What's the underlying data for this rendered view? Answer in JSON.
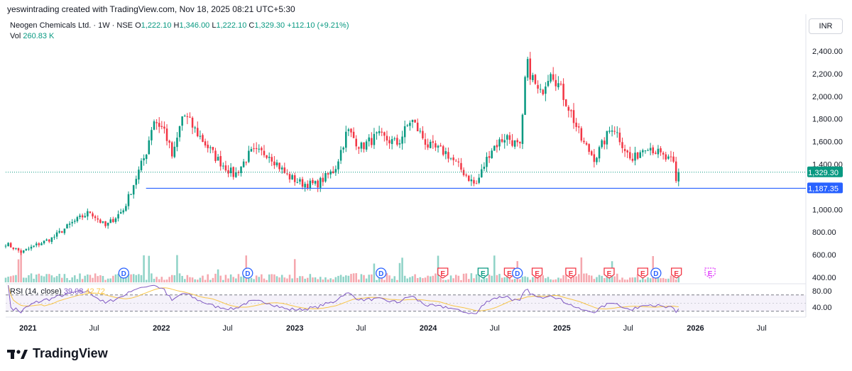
{
  "header": {
    "credit": "yeswintrading created with TradingView.com, Nov 18, 2025 08:21 UTC+5:30"
  },
  "symbol": {
    "name": "Neogen Chemicals Ltd. · 1W · NSE",
    "open_label": "O",
    "open": "1,222.10",
    "high_label": "H",
    "high": "1,346.00",
    "low_label": "L",
    "low": "1,222.10",
    "close_label": "C",
    "close": "1,329.30",
    "change": "+112.10 (+9.21%)"
  },
  "volume": {
    "label": "Vol",
    "value": "260.83 K"
  },
  "currency": "INR",
  "logo_text": "TradingView",
  "colors": {
    "up": "#089981",
    "down": "#f23645",
    "hline": "#2962ff",
    "rsi": "#7e57c2",
    "rsi_ma": "#f7c548",
    "dividend": "#2962ff",
    "earnings": "#f23645",
    "earnings_beat": "#089981",
    "earnings_future": "#e040fb"
  },
  "chart_data": [
    {
      "type": "candlestick",
      "title": "",
      "y_axis": {
        "ticks": [
          "2,400.00",
          "2,200.00",
          "2,000.00",
          "1,800.00",
          "1,600.00",
          "1,400.00",
          "1,200.00",
          "1,000.00",
          "800.00",
          "600.00",
          "400.00"
        ],
        "range": [
          380,
          2470
        ]
      },
      "x_axis": {
        "ticks": [
          "2021",
          "Jul",
          "2022",
          "Jul",
          "2023",
          "Jul",
          "2024",
          "Jul",
          "2025",
          "Jul",
          "2026",
          "Jul"
        ],
        "range": [
          "2020-11",
          "2026-10"
        ]
      },
      "price_labels": [
        {
          "name": "last",
          "value": "1,329.30"
        },
        {
          "name": "horizontal-line",
          "value": "1,187.35"
        }
      ],
      "horizontal_line": 1187.35,
      "anchors": [
        [
          "2020-11-01",
          700
        ],
        [
          "2020-12-15",
          620
        ],
        [
          "2021-01-20",
          680
        ],
        [
          "2021-03-10",
          750
        ],
        [
          "2021-05-01",
          880
        ],
        [
          "2021-06-20",
          980
        ],
        [
          "2021-08-01",
          850
        ],
        [
          "2021-09-20",
          1000
        ],
        [
          "2021-10-20",
          1250
        ],
        [
          "2021-11-20",
          1500
        ],
        [
          "2021-12-10",
          1800
        ],
        [
          "2022-01-10",
          1700
        ],
        [
          "2022-02-01",
          1450
        ],
        [
          "2022-03-01",
          1850
        ],
        [
          "2022-04-15",
          1650
        ],
        [
          "2022-06-01",
          1450
        ],
        [
          "2022-07-20",
          1300
        ],
        [
          "2022-09-01",
          1500
        ],
        [
          "2022-10-20",
          1500
        ],
        [
          "2022-12-10",
          1300
        ],
        [
          "2023-01-20",
          1230
        ],
        [
          "2023-03-01",
          1220
        ],
        [
          "2023-04-20",
          1350
        ],
        [
          "2023-05-25",
          1700
        ],
        [
          "2023-07-01",
          1550
        ],
        [
          "2023-08-15",
          1650
        ],
        [
          "2023-10-10",
          1580
        ],
        [
          "2023-11-15",
          1800
        ],
        [
          "2024-01-01",
          1560
        ],
        [
          "2024-02-20",
          1500
        ],
        [
          "2024-04-01",
          1350
        ],
        [
          "2024-05-10",
          1210
        ],
        [
          "2024-06-20",
          1530
        ],
        [
          "2024-08-01",
          1650
        ],
        [
          "2024-09-10",
          1540
        ],
        [
          "2024-09-25",
          2300
        ],
        [
          "2024-11-01",
          2000
        ],
        [
          "2024-12-01",
          2250
        ],
        [
          "2025-01-20",
          1900
        ],
        [
          "2025-02-25",
          1600
        ],
        [
          "2025-04-01",
          1450
        ],
        [
          "2025-05-20",
          1750
        ],
        [
          "2025-07-10",
          1420
        ],
        [
          "2025-08-20",
          1580
        ],
        [
          "2025-10-10",
          1450
        ],
        [
          "2025-11-01",
          1420
        ],
        [
          "2025-11-10",
          1217
        ],
        [
          "2025-11-17",
          1329.3
        ]
      ],
      "events": [
        {
          "date": "2021-09-20",
          "label": "D",
          "kind": "dividend"
        },
        {
          "date": "2022-08-25",
          "label": "D",
          "kind": "dividend"
        },
        {
          "date": "2023-08-25",
          "label": "D",
          "kind": "dividend"
        },
        {
          "date": "2024-02-10",
          "label": "E",
          "kind": "earnings"
        },
        {
          "date": "2024-05-30",
          "label": "E",
          "kind": "earnings_beat"
        },
        {
          "date": "2024-08-10",
          "label": "E",
          "kind": "earnings"
        },
        {
          "date": "2024-09-01",
          "label": "D",
          "kind": "dividend"
        },
        {
          "date": "2024-10-25",
          "label": "E",
          "kind": "earnings"
        },
        {
          "date": "2025-01-25",
          "label": "E",
          "kind": "earnings"
        },
        {
          "date": "2025-05-10",
          "label": "E",
          "kind": "earnings"
        },
        {
          "date": "2025-08-10",
          "label": "E",
          "kind": "earnings"
        },
        {
          "date": "2025-09-15",
          "label": "D",
          "kind": "dividend"
        },
        {
          "date": "2025-11-10",
          "label": "E",
          "kind": "earnings"
        },
        {
          "date": "2026-02-10",
          "label": "E",
          "kind": "earnings_future"
        }
      ]
    },
    {
      "type": "line",
      "title": "RSI (14, close)",
      "series": [
        {
          "name": "RSI",
          "last": "39.08"
        },
        {
          "name": "RSI-based MA",
          "last": "42.72"
        }
      ],
      "y_axis": {
        "ticks": [
          "80.00",
          "40.00"
        ],
        "bands": [
          70,
          30
        ]
      }
    }
  ]
}
